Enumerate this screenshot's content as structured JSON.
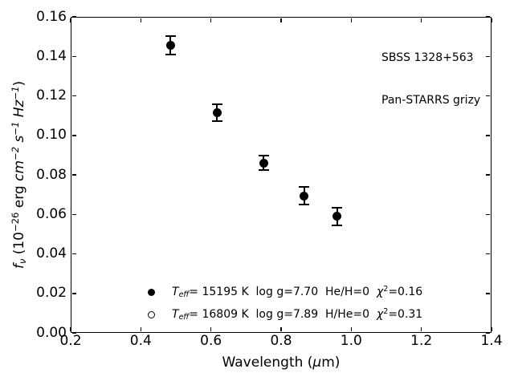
{
  "figure": {
    "background": "#ffffff",
    "ink": "#000000"
  },
  "annotation": {
    "lines": [
      "SBSS 1328+563",
      "Pan-STARRS grizy"
    ]
  },
  "chart_data": {
    "type": "scatter",
    "title": "",
    "xlabel": "Wavelength (μm)",
    "ylabel": "f_ν (10⁻²⁶ erg cm⁻² s⁻¹ Hz⁻¹)",
    "xlim": [
      0.2,
      1.4
    ],
    "ylim": [
      0.0,
      0.16
    ],
    "xticks": [
      0.2,
      0.4,
      0.6,
      0.8,
      1.0,
      1.2,
      1.4
    ],
    "xtick_labels": [
      "0.2",
      "0.4",
      "0.6",
      "0.8",
      "1.0",
      "1.2",
      "1.4"
    ],
    "yticks": [
      0.0,
      0.02,
      0.04,
      0.06,
      0.08,
      0.1,
      0.12,
      0.14,
      0.16
    ],
    "ytick_labels": [
      "0.00",
      "0.02",
      "0.04",
      "0.06",
      "0.08",
      "0.10",
      "0.12",
      "0.14",
      "0.16"
    ],
    "grid": false,
    "tick_direction": "in",
    "series": [
      {
        "marker": "filled-circle",
        "color": "#000000",
        "points": [
          {
            "x": 0.484,
            "y": 0.1455,
            "yerr": 0.0047
          },
          {
            "x": 0.617,
            "y": 0.1114,
            "yerr": 0.0043
          },
          {
            "x": 0.75,
            "y": 0.086,
            "yerr": 0.0037
          },
          {
            "x": 0.866,
            "y": 0.0694,
            "yerr": 0.0044
          },
          {
            "x": 0.96,
            "y": 0.0589,
            "yerr": 0.0045
          }
        ]
      }
    ],
    "legend": {
      "position": "lower-left-inside",
      "entries": [
        {
          "marker": "filled-circle",
          "label": "T_eff= 15195 K  log g=7.70  He/H=0  χ²=0.16",
          "segments": [
            {
              "t": "T",
              "s": "i"
            },
            {
              "t": "eff",
              "s": "isub"
            },
            {
              "t": "= 15195 K  log g=7.70  He/H=0  "
            },
            {
              "t": "χ",
              "s": "i"
            },
            {
              "t": "2",
              "s": "sup"
            },
            {
              "t": "=0.16"
            }
          ]
        },
        {
          "marker": "open-circle",
          "label": "T_eff= 16809 K  log g=7.89  H/He=0  χ²=0.31",
          "segments": [
            {
              "t": "T",
              "s": "i"
            },
            {
              "t": "eff",
              "s": "isub"
            },
            {
              "t": "= 16809 K  log g=7.89  H/He=0  "
            },
            {
              "t": "χ",
              "s": "i"
            },
            {
              "t": "2",
              "s": "sup"
            },
            {
              "t": "=0.31"
            }
          ]
        }
      ]
    },
    "xlabel_segments": [
      {
        "t": "Wavelength ("
      },
      {
        "t": "μ",
        "s": "i"
      },
      {
        "t": "m)"
      }
    ],
    "ylabel_segments": [
      {
        "t": "f",
        "s": "i"
      },
      {
        "t": "ν",
        "s": "isub"
      },
      {
        "t": " (10"
      },
      {
        "t": "−26",
        "s": "sup"
      },
      {
        "t": " erg "
      },
      {
        "t": "cm",
        "s": "i"
      },
      {
        "t": "−2",
        "s": "isup"
      },
      {
        "t": " "
      },
      {
        "t": "s",
        "s": "i"
      },
      {
        "t": "−1",
        "s": "isup"
      },
      {
        "t": " "
      },
      {
        "t": "Hz",
        "s": "i"
      },
      {
        "t": "−1",
        "s": "isup"
      },
      {
        "t": ")"
      }
    ]
  }
}
